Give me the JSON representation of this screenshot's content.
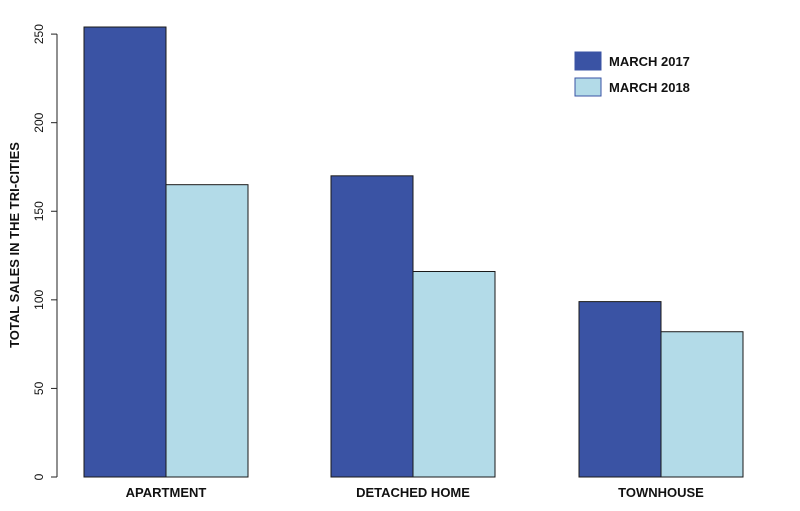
{
  "chart_data": {
    "type": "bar",
    "title": "",
    "xlabel": "",
    "ylabel": "TOTAL SALES IN THE TRI-CITIES",
    "categories": [
      "APARTMENT",
      "DETACHED HOME",
      "TOWNHOUSE"
    ],
    "series": [
      {
        "name": "MARCH 2017",
        "values": [
          254,
          170,
          99
        ],
        "color": "#3a53a4"
      },
      {
        "name": "MARCH 2018",
        "values": [
          165,
          116,
          82
        ],
        "color": "#b3dbe8"
      }
    ],
    "ylim": [
      0,
      260
    ],
    "yticks": [
      0,
      50,
      100,
      150,
      200,
      250
    ],
    "ytick_labels": [
      "0",
      "50",
      "100",
      "150",
      "200",
      "250"
    ],
    "grid": false,
    "legend_position": "top-right",
    "bar_border_color": "#1a1a1a"
  }
}
